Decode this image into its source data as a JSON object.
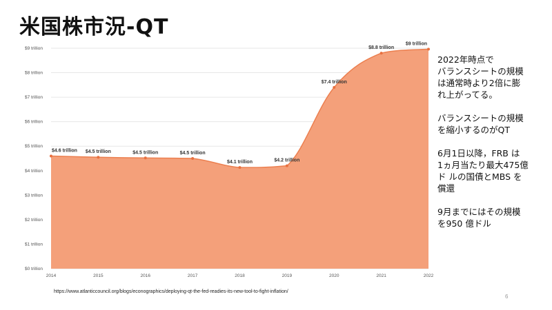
{
  "slide": {
    "title": "米国株市況-QT",
    "source": "https://www.atlanticcouncil.org/blogs/econographics/deploying-qt-the-fed-readies-its-new-tool-to-fight-inflation/",
    "page_number": "6"
  },
  "side_notes": [
    "2022年時点で\nバランスシートの規模\nは通常時より2倍に膨\nれ上がってる。",
    "バランスシートの規模\nを縮小するのがQT",
    "6月1日以降，FRB は\n1ヵ月当たり最大475億\nド ルの国債とMBS を\n償還",
    "9月までにはその規模\nを950 億ドル"
  ],
  "chart_data": {
    "type": "area",
    "x": [
      2014,
      2015,
      2016,
      2017,
      2018,
      2019,
      2020,
      2021,
      2022
    ],
    "tick_labels_x": [
      "2014",
      "2015",
      "2016",
      "2017",
      "2018",
      "2019",
      "2020",
      "2021",
      "2022"
    ],
    "series": [
      {
        "values": [
          4.6,
          4.55,
          4.52,
          4.5,
          4.13,
          4.2,
          7.4,
          8.8,
          8.96
        ],
        "labels": [
          "$4.6 trillion",
          "$4.5 trillion",
          "$4.5 trillion",
          "$4.5 trillion",
          "$4.1 trillion",
          "$4.2 trillion",
          "$7.4 trillion",
          "$8.8 trillion",
          "$9 trillion"
        ]
      }
    ],
    "ylim": [
      0,
      9
    ],
    "y_ticks": [
      0,
      1,
      2,
      3,
      4,
      5,
      6,
      7,
      8,
      9
    ],
    "y_tick_labels": [
      "$0 trillion",
      "$1 trillion",
      "$2 trillion",
      "$3 trillion",
      "$4 trillion",
      "$5 trillion",
      "$6 trillion",
      "$7 trillion",
      "$8 trillion",
      "$9 trillion"
    ],
    "grid": true,
    "fill_color": "#f4a07a",
    "line_color": "#ec7f4f",
    "point_color": "#e8703f"
  }
}
